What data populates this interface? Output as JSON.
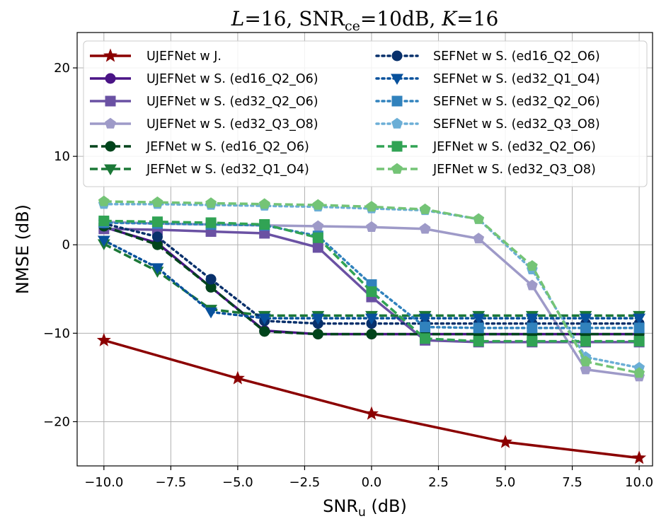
{
  "chart_data": {
    "type": "line",
    "title": {
      "parts": [
        {
          "text": "L",
          "style": "italic"
        },
        {
          "text": "=16, SNR",
          "style": "normal"
        },
        {
          "text": "ce",
          "style": "sub"
        },
        {
          "text": "=10dB, ",
          "style": "normal"
        },
        {
          "text": "K",
          "style": "italic"
        },
        {
          "text": "=16",
          "style": "normal"
        }
      ]
    },
    "xlabel": {
      "main": "SNR",
      "sub": "u",
      "suffix": " (dB)"
    },
    "ylabel": "NMSE (dB)",
    "xlim": [
      -11.0,
      10.5
    ],
    "ylim": [
      -25,
      24
    ],
    "xticks": [
      -10.0,
      -7.5,
      -5.0,
      -2.5,
      0.0,
      2.5,
      5.0,
      7.5,
      10.0
    ],
    "xtick_labels": [
      "−10.0",
      "−7.5",
      "−5.0",
      "−2.5",
      "0.0",
      "2.5",
      "5.0",
      "7.5",
      "10.0"
    ],
    "yticks": [
      -20,
      -10,
      0,
      10,
      20
    ],
    "ytick_labels": [
      "−20",
      "−10",
      "0",
      "10",
      "20"
    ],
    "grid": true,
    "legend_position": "upper",
    "series": [
      {
        "name": "UJEFNet w J.",
        "color": "#8b0000",
        "dash": "solid",
        "marker": "star",
        "x": [
          -10,
          -5,
          0,
          5,
          10
        ],
        "y": [
          -10.8,
          -15.1,
          -19.1,
          -22.3,
          -24.1
        ]
      },
      {
        "name": "UJEFNet w S. (ed16_Q2_O6)",
        "color": "#4a1486",
        "dash": "solid",
        "marker": "circle",
        "x": [
          -10,
          -8,
          -6,
          -4,
          -2,
          0,
          2,
          4,
          6,
          8,
          10
        ],
        "y": [
          2.0,
          0.2,
          -4.8,
          -9.7,
          -10.1,
          -10.1,
          -10.1,
          -10.1,
          -10.1,
          -10.1,
          -10.1
        ]
      },
      {
        "name": "UJEFNet w S. (ed32_Q2_O6)",
        "color": "#6a51a3",
        "dash": "solid",
        "marker": "square",
        "x": [
          -10,
          -8,
          -6,
          -4,
          -2,
          0,
          2,
          4,
          6,
          8,
          10
        ],
        "y": [
          1.8,
          1.7,
          1.5,
          1.3,
          -0.3,
          -5.9,
          -10.8,
          -11.0,
          -11.0,
          -11.0,
          -11.0
        ]
      },
      {
        "name": "UJEFNet w S. (ed32_Q3_O8)",
        "color": "#9e9ac8",
        "dash": "solid",
        "marker": "pentagon",
        "x": [
          -10,
          -8,
          -6,
          -4,
          -2,
          0,
          2,
          4,
          6,
          8,
          10
        ],
        "y": [
          2.6,
          2.4,
          2.3,
          2.2,
          2.1,
          2.0,
          1.8,
          0.7,
          -4.6,
          -14.1,
          -14.9
        ]
      },
      {
        "name": "JEFNet w S. (ed16_Q2_O6)",
        "color": "#00441b",
        "dash": "dashed",
        "marker": "circle",
        "x": [
          -10,
          -8,
          -6,
          -4,
          -2,
          0,
          2,
          4,
          6,
          8,
          10
        ],
        "y": [
          2.1,
          0.0,
          -4.8,
          -9.8,
          -10.1,
          -10.1,
          -10.1,
          -10.1,
          -10.1,
          -10.1,
          -10.1
        ]
      },
      {
        "name": "JEFNet w S. (ed32_Q1_O4)",
        "color": "#1b7837",
        "dash": "dashed",
        "marker": "triangle-down",
        "x": [
          -10,
          -8,
          -6,
          -4,
          -2,
          0,
          2,
          4,
          6,
          8,
          10
        ],
        "y": [
          0.1,
          -3.0,
          -7.3,
          -8.0,
          -8.0,
          -8.0,
          -8.0,
          -8.0,
          -8.0,
          -8.0,
          -8.0
        ]
      },
      {
        "name": "SEFNet w S. (ed16_Q2_O6)",
        "color": "#08306b",
        "dash": "dotted",
        "marker": "circle",
        "x": [
          -10,
          -8,
          -6,
          -4,
          -2,
          0,
          2,
          4,
          6,
          8,
          10
        ],
        "y": [
          2.4,
          0.9,
          -3.9,
          -8.6,
          -8.9,
          -8.9,
          -8.9,
          -8.9,
          -8.9,
          -8.9,
          -8.9
        ]
      },
      {
        "name": "SEFNet w S. (ed32_Q1_O4)",
        "color": "#08519c",
        "dash": "dotted",
        "marker": "triangle-down",
        "x": [
          -10,
          -8,
          -6,
          -4,
          -2,
          0,
          2,
          4,
          6,
          8,
          10
        ],
        "y": [
          0.5,
          -2.6,
          -7.6,
          -8.3,
          -8.3,
          -8.3,
          -8.3,
          -8.3,
          -8.3,
          -8.3,
          -8.3
        ]
      },
      {
        "name": "SEFNet w S. (ed32_Q2_O6)",
        "color": "#3182bd",
        "dash": "dotted",
        "marker": "square",
        "x": [
          -10,
          -8,
          -6,
          -4,
          -2,
          0,
          2,
          4,
          6,
          8,
          10
        ],
        "y": [
          2.5,
          2.4,
          2.3,
          2.2,
          1.0,
          -4.5,
          -9.3,
          -9.4,
          -9.4,
          -9.4,
          -9.4
        ]
      },
      {
        "name": "SEFNet w S. (ed32_Q3_O8)",
        "color": "#6baed6",
        "dash": "dotted",
        "marker": "pentagon",
        "x": [
          -10,
          -8,
          -6,
          -4,
          -2,
          0,
          2,
          4,
          6,
          8,
          10
        ],
        "y": [
          4.6,
          4.6,
          4.5,
          4.4,
          4.3,
          4.1,
          3.9,
          2.9,
          -2.8,
          -12.7,
          -13.9
        ]
      },
      {
        "name": "JEFNet w S. (ed32_Q2_O6)",
        "color": "#31a354",
        "dash": "dashed",
        "marker": "square",
        "x": [
          -10,
          -8,
          -6,
          -4,
          -2,
          0,
          2,
          4,
          6,
          8,
          10
        ],
        "y": [
          2.7,
          2.6,
          2.5,
          2.3,
          0.8,
          -5.3,
          -10.6,
          -10.9,
          -10.9,
          -10.9,
          -10.9
        ]
      },
      {
        "name": "JEFNet w S. (ed32_Q3_O8)",
        "color": "#74c476",
        "dash": "dashed",
        "marker": "pentagon",
        "x": [
          -10,
          -8,
          -6,
          -4,
          -2,
          0,
          2,
          4,
          6,
          8,
          10
        ],
        "y": [
          4.9,
          4.8,
          4.7,
          4.6,
          4.5,
          4.3,
          4.0,
          2.9,
          -2.4,
          -13.2,
          -14.5
        ]
      }
    ]
  }
}
